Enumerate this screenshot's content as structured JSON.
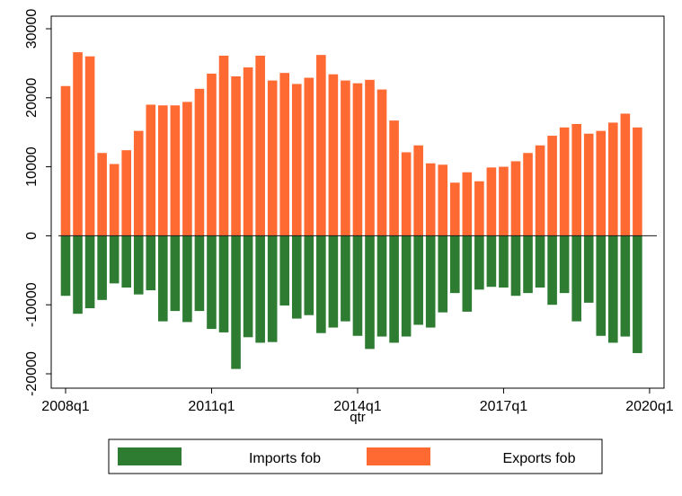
{
  "chart_data": {
    "type": "bar",
    "stacking": "diverging",
    "xlabel": "qtr",
    "ylabel": "",
    "ylim": [
      -20000,
      30000
    ],
    "y_ticks": [
      -20000,
      -10000,
      0,
      10000,
      20000,
      30000
    ],
    "y_tick_labels": [
      "-20000",
      "-10000",
      "0",
      "10000",
      "20000",
      "30000"
    ],
    "x_ticks": [
      0,
      12,
      24,
      36,
      48
    ],
    "x_tick_labels": [
      "2008q1",
      "2011q1",
      "2014q1",
      "2017q1",
      "2020q1"
    ],
    "x_start_label": "2008q1",
    "legend_position": "bottom",
    "series": [
      {
        "name": "Imports fob",
        "color": "#2e7b32",
        "values": [
          -8700,
          -11300,
          -10500,
          -9300,
          -6900,
          -7500,
          -8500,
          -7900,
          -12400,
          -10900,
          -12500,
          -10900,
          -13500,
          -14000,
          -19300,
          -14700,
          -15500,
          -15400,
          -10100,
          -12000,
          -11500,
          -14100,
          -13300,
          -12400,
          -14500,
          -16400,
          -14600,
          -15500,
          -14600,
          -12900,
          -13300,
          -11100,
          -8300,
          -11000,
          -7800,
          -7400,
          -7500,
          -8700,
          -8300,
          -7500,
          -10000,
          -8300,
          -12400,
          -9700,
          -14500,
          -15500,
          -14600,
          -17000
        ]
      },
      {
        "name": "Exports fob",
        "color": "#ff6a33",
        "values": [
          21700,
          26600,
          26000,
          12000,
          10400,
          12400,
          15200,
          19000,
          18900,
          18900,
          19400,
          21300,
          23500,
          26100,
          23100,
          24400,
          26100,
          22500,
          23600,
          22000,
          22900,
          26200,
          23400,
          22500,
          22100,
          22600,
          21200,
          16700,
          12100,
          13100,
          10500,
          10300,
          7700,
          9200,
          7900,
          9900,
          10000,
          10800,
          12000,
          13100,
          14500,
          15700,
          16200,
          14800,
          15200,
          16400,
          17700,
          15700
        ]
      }
    ]
  }
}
